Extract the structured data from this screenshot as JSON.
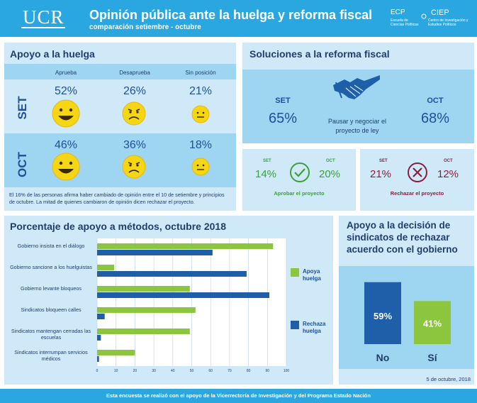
{
  "header": {
    "logo": "UCR",
    "title": "Opinión pública ante la huelga y reforma fiscal",
    "subtitle": "comparación setiembre - octubre",
    "ecp": "ECP",
    "ecp_sub": "Escuela de Ciencias Políticas",
    "ciep": "CIEP",
    "ciep_sub": "Centro de Investigación y Estudios Políticos"
  },
  "apoyo": {
    "title": "Apoyo a la huelga",
    "columns": [
      "Aprueba",
      "Desaprueba",
      "Sin posición"
    ],
    "rows": [
      {
        "label": "SET",
        "values": [
          "52%",
          "26%",
          "21%"
        ]
      },
      {
        "label": "OCT",
        "values": [
          "46%",
          "36%",
          "18%"
        ]
      }
    ],
    "note": "El 16% de las personas afirma haber cambiado de opinión entre el 10 de setiembre y principios de octubre. La mitad de quienes cambiaron de opinión dicen rechazar el proyecto."
  },
  "soluciones": {
    "title": "Soluciones a la reforma fiscal",
    "set_label": "SET",
    "set_value": "65%",
    "oct_label": "OCT",
    "oct_value": "68%",
    "center_label": "Pausar y negociar el proyecto de ley",
    "aprobar": {
      "set_label": "SET",
      "set_value": "14%",
      "oct_label": "OCT",
      "oct_value": "20%",
      "caption": "Aprobar el proyecto",
      "color": "#3aa23a"
    },
    "rechazar": {
      "set_label": "SET",
      "set_value": "21%",
      "oct_label": "OCT",
      "oct_value": "12%",
      "caption": "Rechazar el proyecto",
      "color": "#8b1e3f"
    }
  },
  "metodos": {
    "title": "Porcentaje de apoyo a métodos, octubre 2018",
    "legend": [
      {
        "label": "Apoya huelga",
        "color": "#8cc63f"
      },
      {
        "label": "Rechaza huelga",
        "color": "#1f5ea8"
      }
    ]
  },
  "decision": {
    "title": "Apoyo a la decisión de sindicatos de rechazar acuerdo con el gobierno",
    "no_value": "59%",
    "si_value": "41%",
    "no_label": "No",
    "si_label": "Sí",
    "date": "5 de octubre, 2018"
  },
  "footer": "Esta encuesta se realizó con el apoyo de la Vicerrectoría de Investigación y del Programa Estado Nación",
  "chart_data": [
    {
      "type": "bar",
      "orientation": "horizontal",
      "title": "Porcentaje de apoyo a métodos, octubre 2018",
      "categories": [
        "Gobierno insista en el diálogo",
        "Gobierno sancione a los huelguistas",
        "Gobierno levante bloqueos",
        "Sindicatos bloqueen calles",
        "Sindicatos mantengan cerradas las escuelas",
        "Sindicatos interrumpan servicios médicos"
      ],
      "series": [
        {
          "name": "Apoya huelga",
          "color": "#8cc63f",
          "values": [
            93,
            9,
            49,
            52,
            49,
            20
          ]
        },
        {
          "name": "Rechaza huelga",
          "color": "#1f5ea8",
          "values": [
            61,
            79,
            91,
            4,
            2,
            1
          ]
        }
      ],
      "xlim": [
        0,
        100
      ],
      "xticks": [
        0,
        10,
        20,
        30,
        40,
        50,
        60,
        70,
        80,
        90,
        100
      ],
      "grid": true,
      "legend": "right"
    },
    {
      "type": "bar",
      "title": "Apoyo a la decisión de sindicatos de rechazar acuerdo con el gobierno",
      "categories": [
        "No",
        "Sí"
      ],
      "values": [
        59,
        41
      ],
      "colors": [
        "#1f5ea8",
        "#8cc63f"
      ]
    }
  ]
}
